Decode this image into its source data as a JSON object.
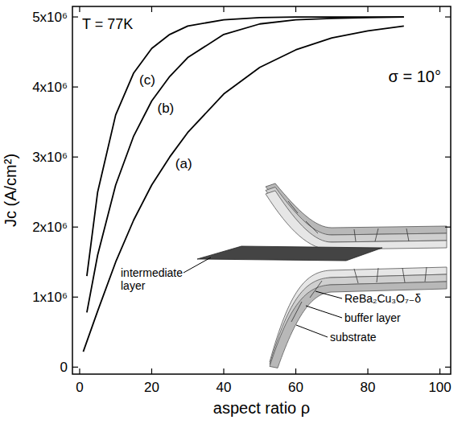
{
  "chart_data": {
    "type": "line",
    "x_label": "aspect ratio ρ",
    "y_label": "Jc (A/cm²)",
    "annotations": [
      "T = 77K",
      "σ = 10°"
    ],
    "inset_labels": [
      "intermediate layer",
      "ReBa₂Cu₃O₇₋δ",
      "buffer layer",
      "substrate"
    ],
    "xlim": [
      -2,
      103
    ],
    "ylim": [
      -100000,
      5150000
    ],
    "xticks": [
      0,
      20,
      40,
      60,
      80,
      100
    ],
    "yticks": [
      0,
      {
        "value": 1000000,
        "label": "1x10⁶"
      },
      {
        "value": 2000000,
        "label": "2x10⁶"
      },
      {
        "value": 3000000,
        "label": "3x10⁶"
      },
      {
        "value": 4000000,
        "label": "4x10⁶"
      },
      {
        "value": 5000000,
        "label": "5x10⁶"
      }
    ],
    "series": [
      {
        "name": "(a)",
        "color": "#000000",
        "x": [
          1,
          5,
          10,
          15,
          20,
          25,
          30,
          40,
          50,
          60,
          70,
          80,
          90
        ],
        "values": [
          220000,
          800000,
          1500000,
          2100000,
          2600000,
          3000000,
          3350000,
          3900000,
          4280000,
          4530000,
          4700000,
          4800000,
          4870000
        ]
      },
      {
        "name": "(b)",
        "color": "#000000",
        "x": [
          2,
          5,
          10,
          15,
          20,
          25,
          30,
          40,
          50,
          60,
          70,
          80,
          90
        ],
        "values": [
          780000,
          1600000,
          2600000,
          3300000,
          3800000,
          4150000,
          4420000,
          4750000,
          4900000,
          4960000,
          4980000,
          4990000,
          5000000
        ]
      },
      {
        "name": "(c)",
        "color": "#000000",
        "x": [
          2,
          5,
          10,
          15,
          20,
          25,
          30,
          40,
          50,
          60,
          70,
          80,
          90
        ],
        "values": [
          1300000,
          2500000,
          3600000,
          4200000,
          4550000,
          4750000,
          4870000,
          4960000,
          4990000,
          5000000,
          5000000,
          5000000,
          5000000
        ]
      }
    ]
  }
}
